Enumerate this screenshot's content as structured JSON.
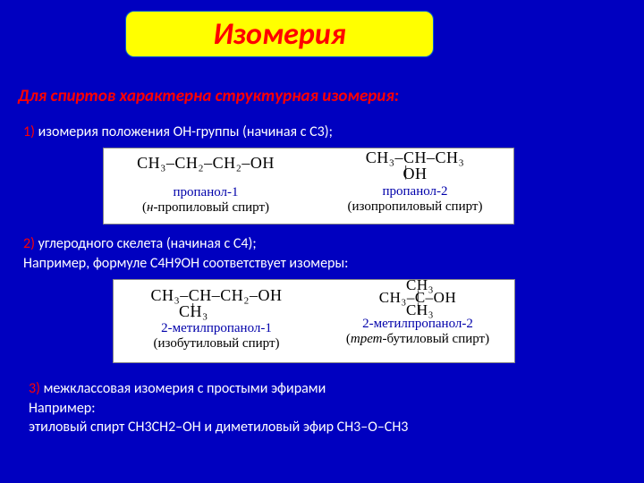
{
  "title": "Изомерия",
  "subtitle": "Для спиртов характерна структурная изомерия:",
  "item1": {
    "num": "1)",
    "text": " изомерия положения OH-группы (начиная с C3);"
  },
  "chem1": {
    "left": {
      "formula": "CH₃–CH₂–CH₂–OH",
      "name": "пропанол-1",
      "paren": "(н-пропиловый спирт)"
    },
    "right": {
      "formula_top": "CH₃–CH–CH₃",
      "formula_bot": "OH",
      "name": "пропанол-2",
      "paren": "(изопропиловый спирт)"
    }
  },
  "item2": {
    "num": "2)",
    "text": " углеродного скелета (начиная с C4);",
    "line2": "Например, формуле C4H9OH соответствует изомеры:"
  },
  "chem2": {
    "left": {
      "formula_top": "CH₃–CH–CH₂–OH",
      "formula_bot": "CH₃",
      "name": "2-метилпропанол-1",
      "paren": "(изобутиловый спирт)"
    },
    "right": {
      "formula_top": "CH₃",
      "formula_mid": "CH₃–C–OH",
      "formula_bot": "CH₃",
      "name": "2-метилпропанол-2",
      "paren_pre": "(",
      "paren_it": "трет",
      "paren_post": "-бутиловый спирт)"
    }
  },
  "item3": {
    "num": "3)",
    "text": " межклассовая изомерия с простыми эфирами",
    "line2": "Например:",
    "line3": "этиловый спирт CH3CH2–OH и диметиловый эфир CH3–O–CH3"
  }
}
